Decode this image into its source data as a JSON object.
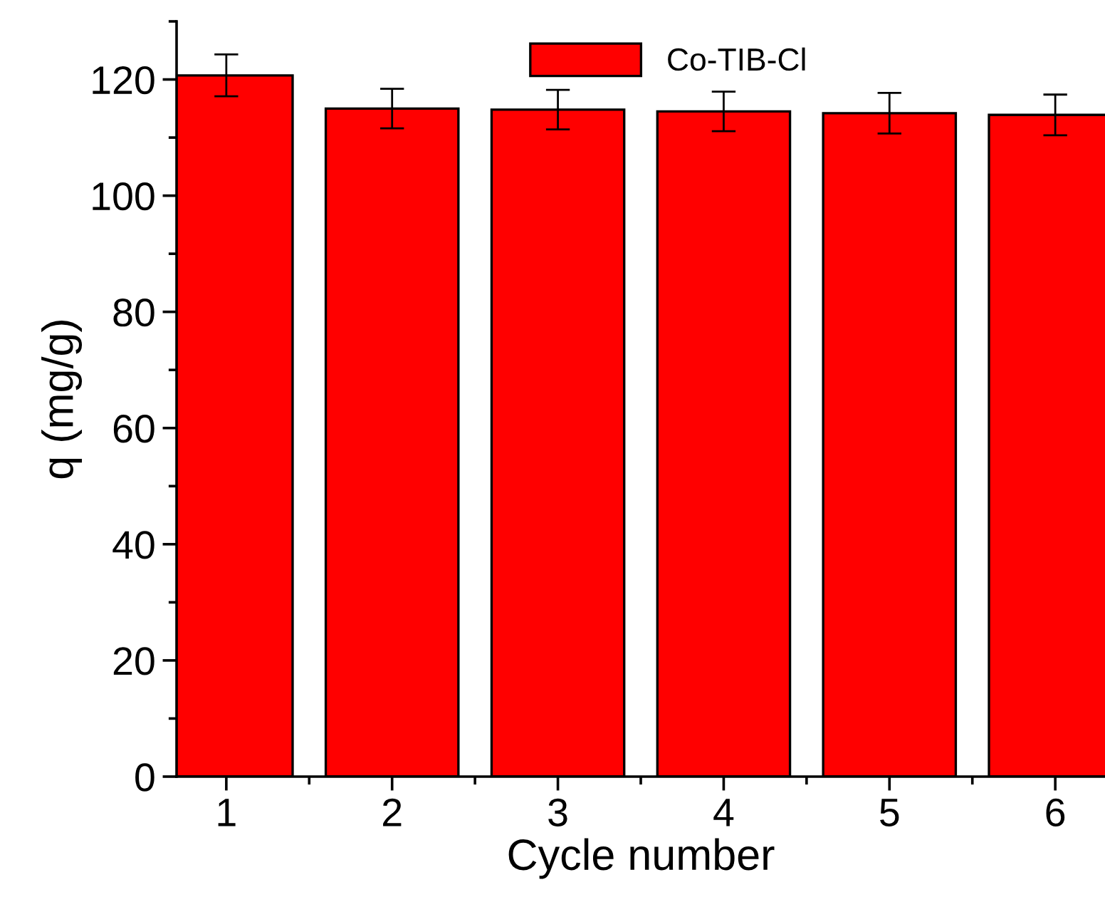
{
  "chart_data": {
    "type": "bar",
    "xlabel": "Cycle number",
    "ylabel": "q (mg/g)",
    "x": [
      1,
      2,
      3,
      4,
      5,
      6
    ],
    "series": [
      {
        "name": "Co-TIB-Cl",
        "color": "#ff0000",
        "values": [
          120.7,
          115.0,
          114.8,
          114.5,
          114.2,
          113.9
        ],
        "errors": [
          3.6,
          3.4,
          3.4,
          3.4,
          3.5,
          3.5
        ]
      }
    ],
    "xlim": [
      0.7,
      6.3
    ],
    "ylim": [
      0,
      130
    ],
    "xticks": [
      1,
      2,
      3,
      4,
      5,
      6
    ],
    "yticks": [
      0,
      20,
      40,
      60,
      80,
      100,
      120
    ],
    "grid": false,
    "legend": "top"
  }
}
